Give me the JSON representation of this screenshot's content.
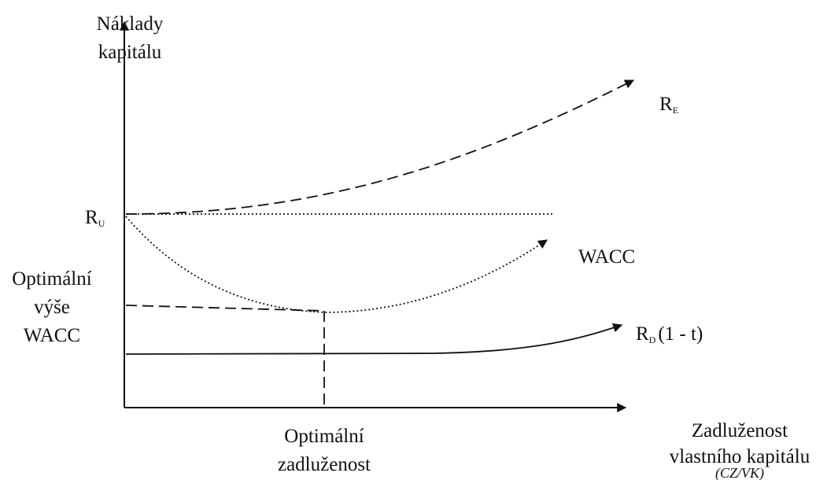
{
  "y_axis_label": [
    "Náklady",
    "kapitálu"
  ],
  "x_axis_label": [
    "Zadluženost",
    "vlastního kapitálu",
    "(CZ/VK)"
  ],
  "curves": {
    "re": {
      "main": "R",
      "sub": "E"
    },
    "ru": {
      "main": "R",
      "sub": "U"
    },
    "wacc": "WACC",
    "rd": {
      "main": "R",
      "sub": "D",
      "suffix": "(1 - t)"
    }
  },
  "optimal_wacc": [
    "Optimální",
    "výše",
    "WACC"
  ],
  "optimal_debt": [
    "Optimální",
    "zadluženost"
  ]
}
